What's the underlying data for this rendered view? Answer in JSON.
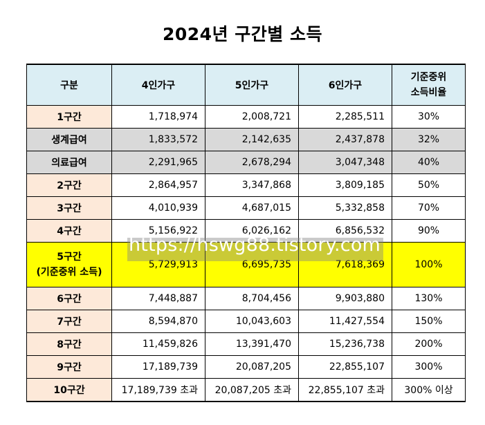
{
  "title": "2024년 구간별 소득",
  "table": {
    "headers": {
      "category": "구분",
      "p4": "4인가구",
      "p5": "5인가구",
      "p6": "6인가구",
      "ratio_line1": "기준중위",
      "ratio_line2": "소득비율"
    },
    "rows": [
      {
        "label": "1구간",
        "p4": "1,718,974",
        "p5": "2,008,721",
        "p6": "2,285,511",
        "ratio": "30%"
      },
      {
        "label": "생계급여",
        "p4": "1,833,572",
        "p5": "2,142,635",
        "p6": "2,437,878",
        "ratio": "32%"
      },
      {
        "label": "의료급여",
        "p4": "2,291,965",
        "p5": "2,678,294",
        "p6": "3,047,348",
        "ratio": "40%"
      },
      {
        "label": "2구간",
        "p4": "2,864,957",
        "p5": "3,347,868",
        "p6": "3,809,185",
        "ratio": "50%"
      },
      {
        "label": "3구간",
        "p4": "4,010,939",
        "p5": "4,687,015",
        "p6": "5,332,858",
        "ratio": "70%"
      },
      {
        "label": "4구간",
        "p4": "5,156,922",
        "p5": "6,026,162",
        "p6": "6,856,532",
        "ratio": "90%"
      },
      {
        "label": "5구간",
        "label2": "(기준중위 소득)",
        "p4": "5,729,913",
        "p5": "6,695,735",
        "p6": "7,618,369",
        "ratio": "100%"
      },
      {
        "label": "6구간",
        "p4": "7,448,887",
        "p5": "8,704,456",
        "p6": "9,903,880",
        "ratio": "130%"
      },
      {
        "label": "7구간",
        "p4": "8,594,870",
        "p5": "10,043,603",
        "p6": "11,427,554",
        "ratio": "150%"
      },
      {
        "label": "8구간",
        "p4": "11,459,826",
        "p5": "13,391,470",
        "p6": "15,236,738",
        "ratio": "200%"
      },
      {
        "label": "9구간",
        "p4": "17,189,739",
        "p5": "20,087,205",
        "p6": "22,855,107",
        "ratio": "300%"
      },
      {
        "label": "10구간",
        "p4": "17,189,739 초과",
        "p5": "20,087,205 초과",
        "p6": "22,855,107 초과",
        "ratio": "300% 이상"
      }
    ]
  },
  "watermark": "https://hswg88.tistory.com",
  "colors": {
    "header_bg": "#dbeef4",
    "label_bg": "#fde9d9",
    "benefit_row_bg": "#d9d9d9",
    "median_row_bg": "#ffff00"
  }
}
